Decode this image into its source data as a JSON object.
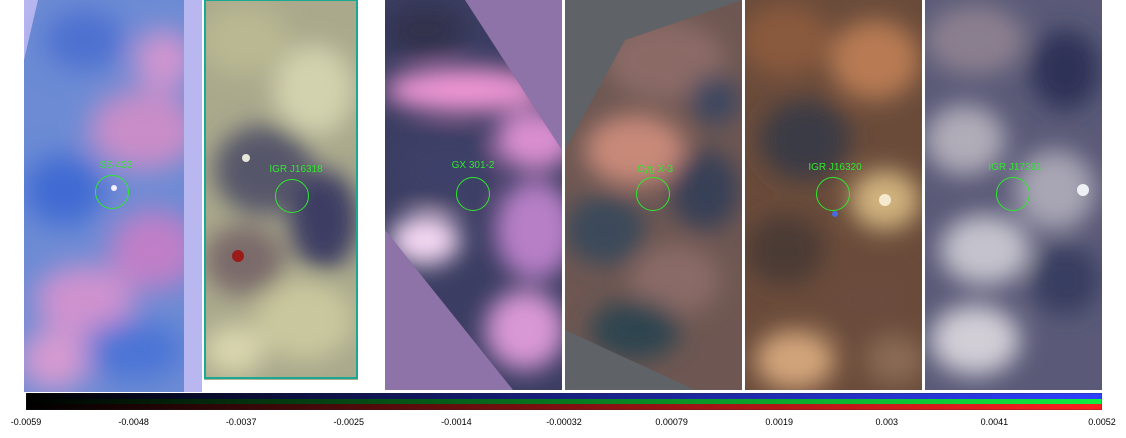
{
  "colors": {
    "marker": "#2ee82e"
  },
  "panels": [
    {
      "name": "panel-ss433",
      "label": "SS 433"
    },
    {
      "name": "panel-igrj16318",
      "label": "IGR J16318"
    },
    {
      "name": "panel-gx301",
      "label": "GX 301-2"
    },
    {
      "name": "panel-cygx3",
      "label": "Cyg X-3"
    },
    {
      "name": "panel-igrj16320",
      "label": "IGR J16320"
    },
    {
      "name": "panel-igrj17391",
      "label": "IGR J17391"
    }
  ],
  "colorbar": {
    "ticks": [
      "-0.0059",
      "-0.0048",
      "-0.0037",
      "-0.0025",
      "-0.0014",
      "-0.00032",
      "0.00079",
      "0.0019",
      "0.003",
      "0.0041",
      "0.0052"
    ]
  }
}
